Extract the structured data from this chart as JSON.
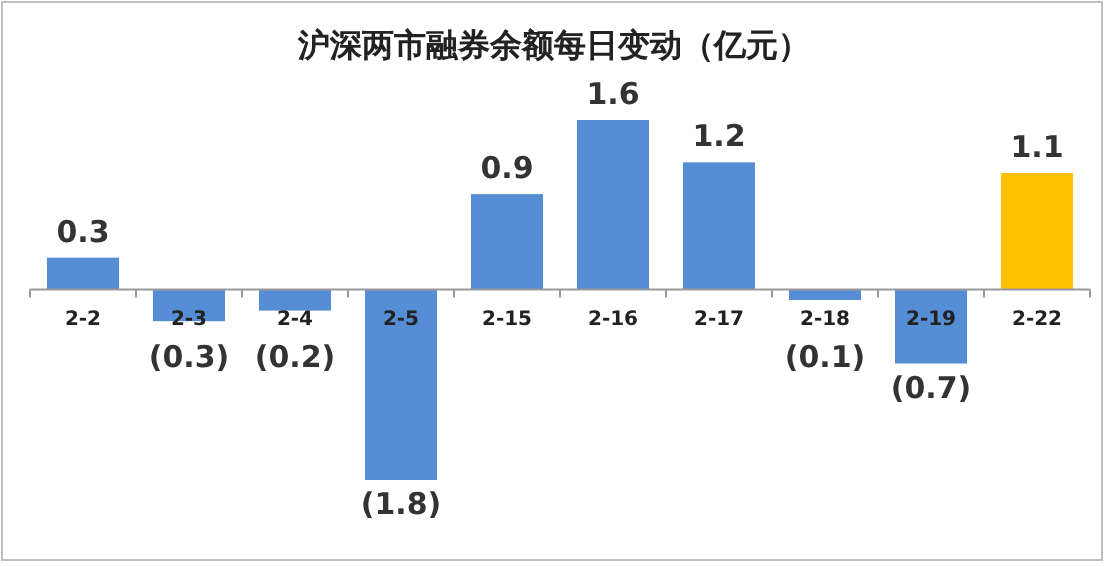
{
  "chart_data": {
    "type": "bar",
    "title": "沪深两市融券余额每日变动（亿元）",
    "categories": [
      "2-2",
      "2-3",
      "2-4",
      "2-5",
      "2-15",
      "2-16",
      "2-17",
      "2-18",
      "2-19",
      "2-22"
    ],
    "values": [
      0.3,
      -0.3,
      -0.2,
      -1.8,
      0.9,
      1.6,
      1.2,
      -0.1,
      -0.7,
      1.1
    ],
    "value_labels": [
      "0.3",
      "(0.3)",
      "(0.2)",
      "(1.8)",
      "0.9",
      "1.6",
      "1.2",
      "(0.1)",
      "(0.7)",
      "1.1"
    ],
    "colors": [
      "#558ed5",
      "#558ed5",
      "#558ed5",
      "#558ed5",
      "#558ed5",
      "#558ed5",
      "#558ed5",
      "#558ed5",
      "#558ed5",
      "#ffc000"
    ]
  }
}
